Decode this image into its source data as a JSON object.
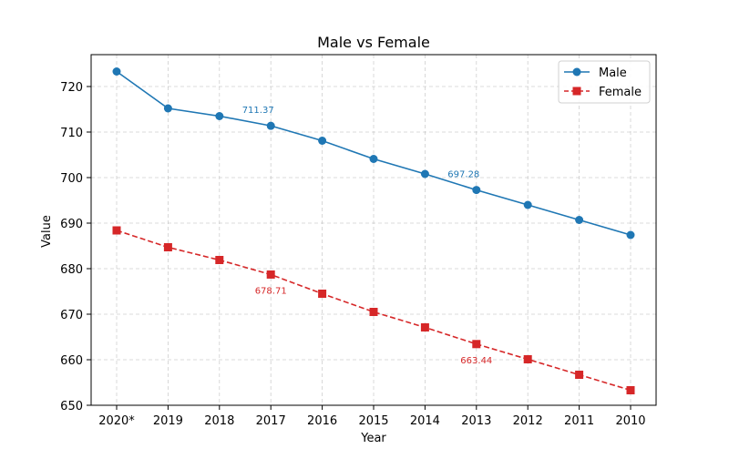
{
  "chart_data": {
    "type": "line",
    "title": "Male vs Female",
    "xlabel": "Year",
    "ylabel": "Value",
    "categories": [
      "2020*",
      "2019",
      "2018",
      "2017",
      "2016",
      "2015",
      "2014",
      "2013",
      "2012",
      "2011",
      "2010"
    ],
    "ylim": [
      650,
      727
    ],
    "yticks": [
      650,
      660,
      670,
      680,
      690,
      700,
      710,
      720
    ],
    "grid": true,
    "legend_position": "top-right",
    "series": [
      {
        "name": "Male",
        "color": "#1f77b4",
        "marker": "circle",
        "line_style": "solid",
        "values": [
          723.3,
          715.2,
          713.5,
          711.37,
          708.1,
          704.1,
          700.8,
          697.28,
          694.0,
          690.7,
          687.4
        ]
      },
      {
        "name": "Female",
        "color": "#d62728",
        "marker": "square",
        "line_style": "dashed",
        "values": [
          688.4,
          684.7,
          681.9,
          678.71,
          674.5,
          670.5,
          667.1,
          663.44,
          660.1,
          656.7,
          653.3
        ]
      }
    ],
    "annotations": [
      {
        "series": 0,
        "index": 3,
        "text": "711.37",
        "placement": "above-left"
      },
      {
        "series": 0,
        "index": 7,
        "text": "697.28",
        "placement": "above-left"
      },
      {
        "series": 1,
        "index": 3,
        "text": "678.71",
        "placement": "below"
      },
      {
        "series": 1,
        "index": 7,
        "text": "663.44",
        "placement": "below"
      }
    ]
  }
}
